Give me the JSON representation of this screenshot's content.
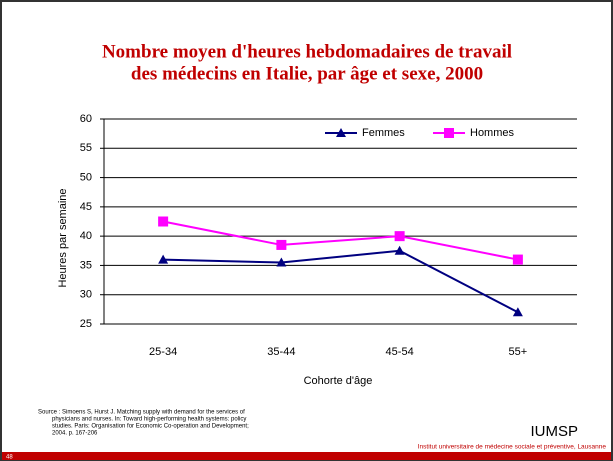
{
  "chart_data": {
    "type": "line",
    "title": [
      "Nombre moyen d'heures hebdomadaires de travail",
      "des médecins en Italie, par âge et sexe, 2000"
    ],
    "categories": [
      "25-34",
      "35-44",
      "45-54",
      "55+"
    ],
    "series": [
      {
        "name": "Femmes",
        "color": "#000080",
        "marker": "triangle",
        "values": [
          36,
          35.5,
          37.5,
          27
        ]
      },
      {
        "name": "Hommes",
        "color": "#ff00ff",
        "marker": "square",
        "values": [
          42.5,
          38.5,
          40,
          36
        ]
      }
    ],
    "ylim": [
      25,
      60
    ],
    "yticks": [
      25,
      30,
      35,
      40,
      45,
      50,
      55,
      60
    ],
    "grid": true,
    "xlabel": "Cohorte d'âge",
    "ylabel": "Heures par semaine",
    "legend": "top"
  },
  "source": [
    "Source : Simoens S, Hurst J. Matching supply with demand for the services of",
    "physicians and nurses. In: Toward high-performing health systems: policy",
    "studies. Paris: Organisation for Economic Co-operation and Development;",
    "2004. p. 167-206"
  ],
  "footer": {
    "org": "IUMSP",
    "institute": "Institut universitaire de médecine sociale et préventive, Lausanne",
    "slide_number": "48"
  }
}
